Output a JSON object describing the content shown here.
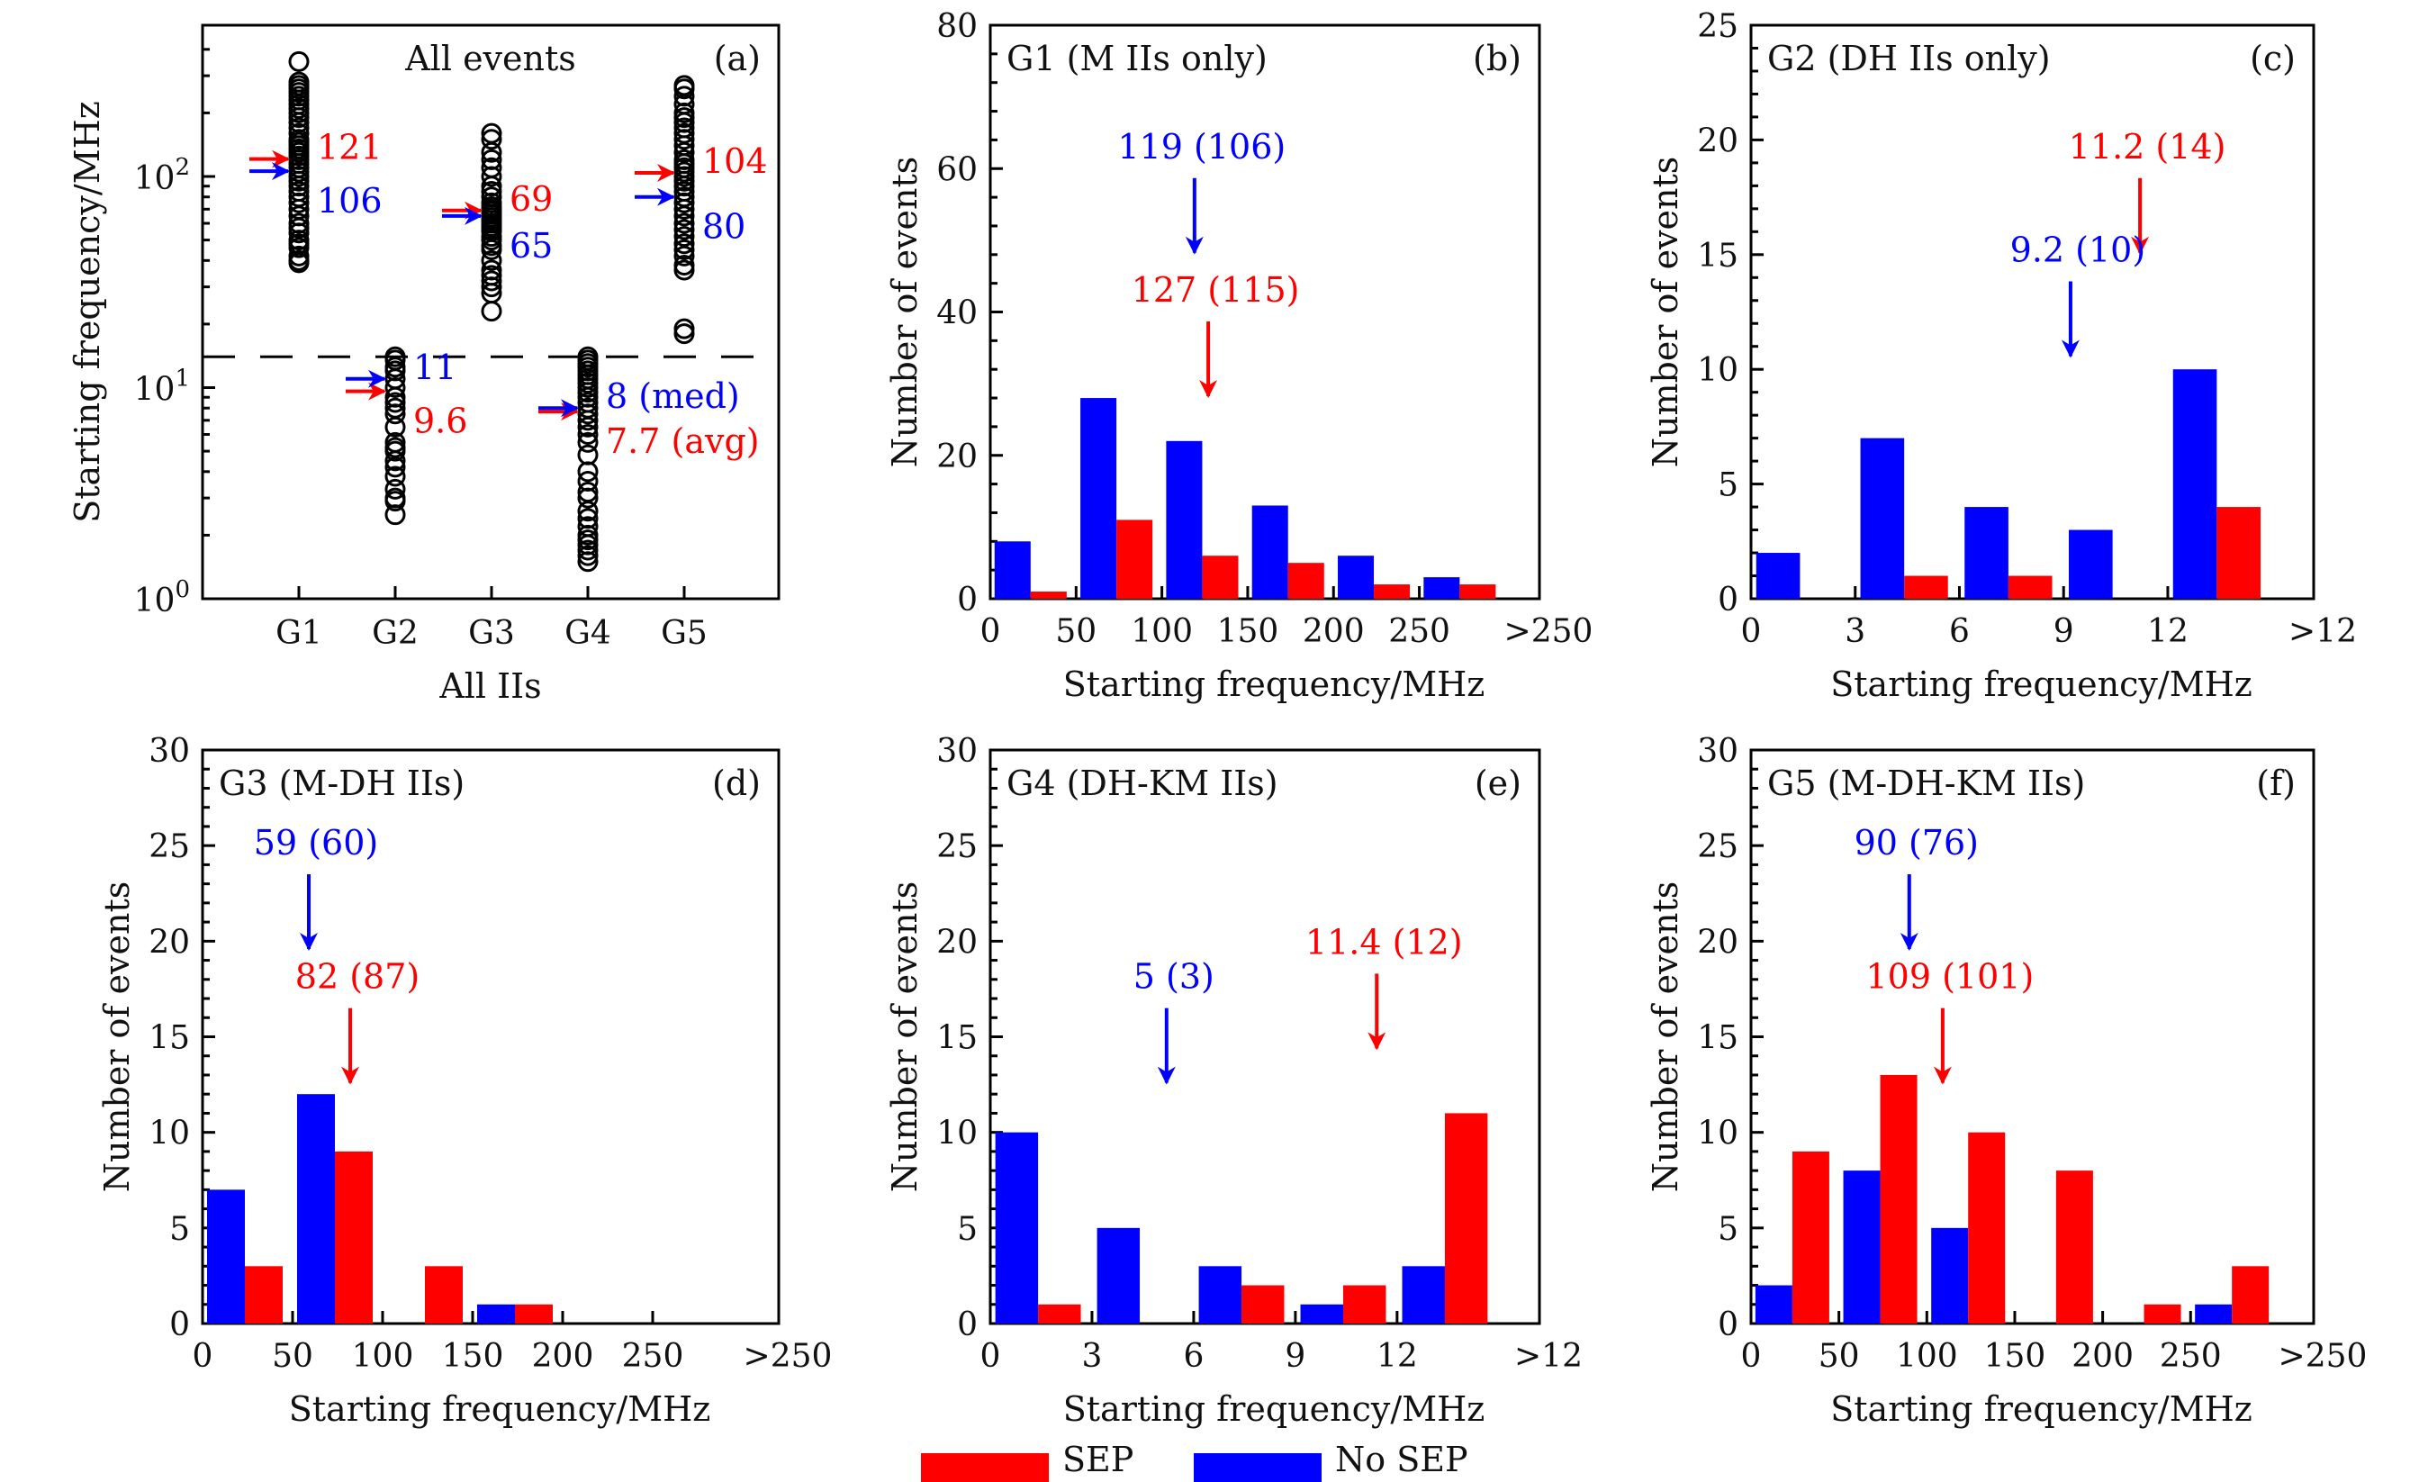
{
  "colors": {
    "sep": "#ff0000",
    "no_sep": "#0000ff",
    "axis": "#000000",
    "marker": "#000000"
  },
  "legend": {
    "placement": "bottom-center",
    "entries": [
      {
        "name": "SEP",
        "color": "#ff0000"
      },
      {
        "name": "No SEP",
        "color": "#0000ff"
      }
    ]
  },
  "chart_data": [
    {
      "id": "a",
      "type": "scatter",
      "panel_letter": "(a)",
      "title": "All events",
      "xlabel": "All IIs",
      "ylabel": "Starting frequency/MHz",
      "yscale": "log",
      "ylim": [
        1,
        400
      ],
      "yticks": [
        1,
        10,
        100
      ],
      "ytick_labels": [
        "10^0",
        "10^1",
        "10^2"
      ],
      "categories": [
        "G1",
        "G2",
        "G3",
        "G4",
        "G5"
      ],
      "threshold_line": {
        "value": 14,
        "style": "dashed"
      },
      "points": {
        "G1": [
          350,
          280,
          270,
          260,
          250,
          240,
          230,
          220,
          210,
          200,
          190,
          180,
          170,
          160,
          150,
          145,
          140,
          135,
          130,
          125,
          120,
          115,
          110,
          105,
          100,
          95,
          90,
          85,
          80,
          75,
          70,
          65,
          60,
          57,
          54,
          50,
          48,
          46,
          42,
          40,
          39
        ],
        "G2": [
          14,
          13.5,
          12.5,
          12,
          11,
          10,
          9,
          8.5,
          8,
          7.5,
          6.5,
          5.5,
          5.2,
          5,
          4.5,
          4.2,
          3.8,
          3.3,
          3,
          2.9,
          2.5
        ],
        "G3": [
          160,
          150,
          130,
          120,
          110,
          100,
          90,
          85,
          80,
          75,
          72,
          70,
          68,
          66,
          64,
          62,
          60,
          58,
          56,
          55,
          52,
          50,
          47,
          45,
          40,
          36,
          34,
          32,
          30,
          28,
          23
        ],
        "G4": [
          14,
          13.5,
          13,
          12.5,
          12,
          11.5,
          11,
          10.5,
          10,
          9.5,
          9,
          8.5,
          8,
          7.5,
          7,
          6.5,
          6,
          5.5,
          4.8,
          4,
          3.6,
          3.2,
          3,
          2.6,
          2.4,
          2.2,
          2,
          1.9,
          1.8,
          1.7,
          1.6,
          1.5
        ],
        "G5": [
          270,
          260,
          240,
          220,
          200,
          190,
          180,
          170,
          160,
          150,
          140,
          130,
          120,
          115,
          110,
          105,
          100,
          95,
          90,
          85,
          80,
          75,
          70,
          65,
          60,
          56,
          52,
          48,
          45,
          42,
          38,
          36,
          19,
          18
        ]
      },
      "markers": [
        {
          "group": "G1",
          "sep": 121,
          "no_sep": 106,
          "sep_label": "121",
          "no_sep_label": "106"
        },
        {
          "group": "G2",
          "sep": 9.6,
          "no_sep": 11,
          "sep_label": "9.6",
          "no_sep_label": "11"
        },
        {
          "group": "G3",
          "sep": 69,
          "no_sep": 65,
          "sep_label": "69",
          "no_sep_label": "65"
        },
        {
          "group": "G4",
          "sep": 7.7,
          "no_sep": 8,
          "sep_label": "7.7 (avg)",
          "no_sep_label": "8 (med)"
        },
        {
          "group": "G5",
          "sep": 104,
          "no_sep": 80,
          "sep_label": "104",
          "no_sep_label": "80"
        }
      ]
    },
    {
      "id": "b",
      "type": "bar",
      "panel_letter": "(b)",
      "title": "G1 (M IIs only)",
      "xlabel": "Starting frequency/MHz",
      "ylabel": "Number of events",
      "ylim": [
        0,
        80
      ],
      "yticks": [
        0,
        20,
        40,
        60,
        80
      ],
      "xtick_labels": [
        "0",
        "50",
        "100",
        "150",
        "200",
        "250",
        ">250"
      ],
      "series": [
        {
          "name": "No SEP",
          "values": [
            8,
            28,
            22,
            13,
            6,
            3
          ]
        },
        {
          "name": "SEP",
          "values": [
            1,
            11,
            6,
            5,
            2,
            2
          ]
        }
      ],
      "annotations": [
        {
          "series": "No SEP",
          "text": "119 (106)",
          "x": 119,
          "arrow_tip": 48
        },
        {
          "series": "SEP",
          "text": "127 (115)",
          "x": 127,
          "arrow_tip": 28
        }
      ]
    },
    {
      "id": "c",
      "type": "bar",
      "panel_letter": "(c)",
      "title": "G2 (DH IIs only)",
      "xlabel": "Starting frequency/MHz",
      "ylabel": "Number of events",
      "ylim": [
        0,
        25
      ],
      "yticks": [
        0,
        5,
        10,
        15,
        20,
        25
      ],
      "xtick_labels": [
        "0",
        "3",
        "6",
        "9",
        "12",
        ">12"
      ],
      "series": [
        {
          "name": "No SEP",
          "values": [
            2,
            7,
            4,
            3,
            10
          ]
        },
        {
          "name": "SEP",
          "values": [
            0,
            1,
            1,
            0,
            4
          ]
        }
      ],
      "annotations": [
        {
          "series": "SEP",
          "text": "11.2 (14)",
          "x": 11.2,
          "arrow_tip": 15
        },
        {
          "series": "No SEP",
          "text": "9.2 (10)",
          "x": 9.2,
          "arrow_tip": 10.5
        }
      ]
    },
    {
      "id": "d",
      "type": "bar",
      "panel_letter": "(d)",
      "title": "G3 (M-DH IIs)",
      "xlabel": "Starting frequency/MHz",
      "ylabel": "Number of events",
      "ylim": [
        0,
        30
      ],
      "yticks": [
        0,
        5,
        10,
        15,
        20,
        25,
        30
      ],
      "xtick_labels": [
        "0",
        "50",
        "100",
        "150",
        "200",
        "250",
        ">250"
      ],
      "series": [
        {
          "name": "No SEP",
          "values": [
            7,
            12,
            0,
            1,
            0,
            0
          ]
        },
        {
          "name": "SEP",
          "values": [
            3,
            9,
            3,
            1,
            0,
            0
          ]
        }
      ],
      "annotations": [
        {
          "series": "No SEP",
          "text": "59 (60)",
          "x": 59,
          "arrow_tip": 19.5
        },
        {
          "series": "SEP",
          "text": "82 (87)",
          "x": 82,
          "arrow_tip": 12.5
        }
      ]
    },
    {
      "id": "e",
      "type": "bar",
      "panel_letter": "(e)",
      "title": "G4 (DH-KM IIs)",
      "xlabel": "Starting frequency/MHz",
      "ylabel": "Number of events",
      "ylim": [
        0,
        30
      ],
      "yticks": [
        0,
        5,
        10,
        15,
        20,
        25,
        30
      ],
      "xtick_labels": [
        "0",
        "3",
        "6",
        "9",
        "12",
        ">12"
      ],
      "series": [
        {
          "name": "No SEP",
          "values": [
            10,
            5,
            3,
            1,
            3
          ]
        },
        {
          "name": "SEP",
          "values": [
            1,
            0,
            2,
            2,
            11
          ]
        }
      ],
      "annotations": [
        {
          "series": "No SEP",
          "text": "5 (3)",
          "x": 5.2,
          "arrow_tip": 12.5
        },
        {
          "series": "SEP",
          "text": "11.4 (12)",
          "x": 11.4,
          "arrow_tip": 14.3
        }
      ]
    },
    {
      "id": "f",
      "type": "bar",
      "panel_letter": "(f)",
      "title": "G5 (M-DH-KM IIs)",
      "xlabel": "Starting frequency/MHz",
      "ylabel": "Number of events",
      "ylim": [
        0,
        30
      ],
      "yticks": [
        0,
        5,
        10,
        15,
        20,
        25,
        30
      ],
      "xtick_labels": [
        "0",
        "50",
        "100",
        "150",
        "200",
        "250",
        ">250"
      ],
      "series": [
        {
          "name": "No SEP",
          "values": [
            2,
            8,
            5,
            0,
            0,
            1
          ]
        },
        {
          "name": "SEP",
          "values": [
            9,
            13,
            10,
            8,
            1,
            3
          ]
        }
      ],
      "annotations": [
        {
          "series": "No SEP",
          "text": "90 (76)",
          "x": 90,
          "arrow_tip": 19.5
        },
        {
          "series": "SEP",
          "text": "109 (101)",
          "x": 109,
          "arrow_tip": 12.5
        }
      ]
    }
  ]
}
